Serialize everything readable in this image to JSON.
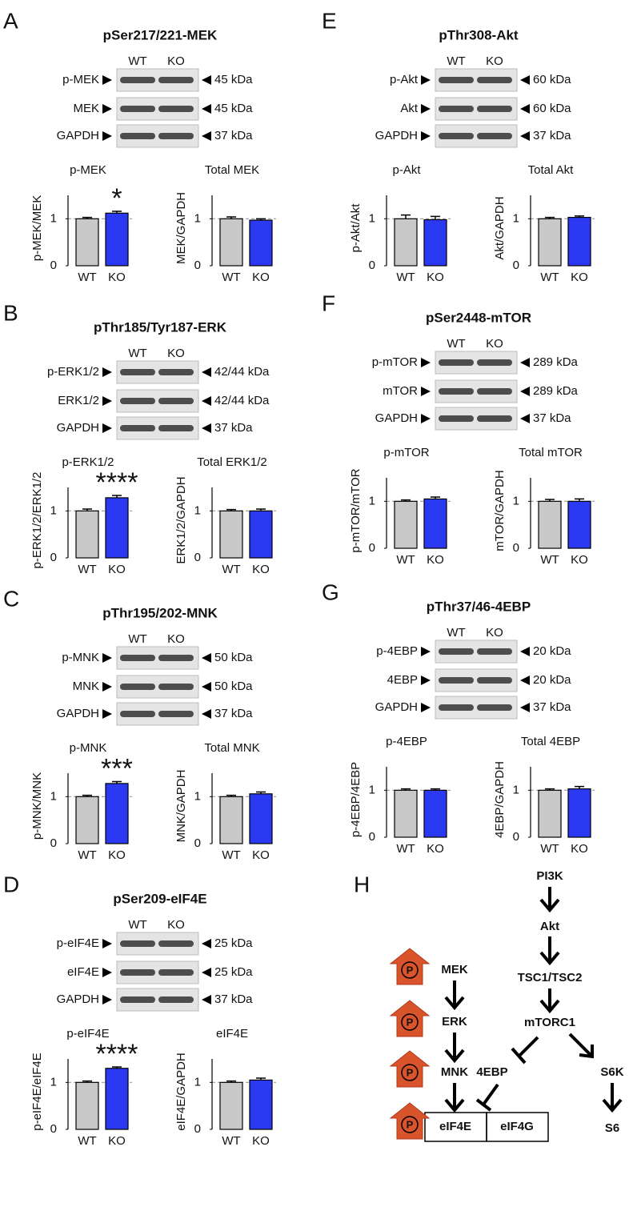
{
  "panels": [
    {
      "label": "A",
      "title": "pSer217/221-MEK",
      "lanes": [
        "WT",
        "KO"
      ],
      "blots": [
        {
          "name": "p-MEK",
          "size": "45 kDa"
        },
        {
          "name": "MEK",
          "size": "45 kDa"
        },
        {
          "name": "GAPDH",
          "size": "37 kDa"
        }
      ]
    },
    {
      "label": "B",
      "title": "pThr185/Tyr187-ERK",
      "lanes": [
        "WT",
        "KO"
      ],
      "blots": [
        {
          "name": "p-ERK1/2",
          "size": "42/44 kDa"
        },
        {
          "name": "ERK1/2",
          "size": "42/44 kDa"
        },
        {
          "name": "GAPDH",
          "size": "37 kDa"
        }
      ]
    },
    {
      "label": "C",
      "title": "pThr195/202-MNK",
      "lanes": [
        "WT",
        "KO"
      ],
      "blots": [
        {
          "name": "p-MNK",
          "size": "50 kDa"
        },
        {
          "name": "MNK",
          "size": "50 kDa"
        },
        {
          "name": "GAPDH",
          "size": "37 kDa"
        }
      ]
    },
    {
      "label": "D",
      "title": "pSer209-eIF4E",
      "lanes": [
        "WT",
        "KO"
      ],
      "blots": [
        {
          "name": "p-eIF4E",
          "size": "25 kDa"
        },
        {
          "name": "eIF4E",
          "size": "25 kDa"
        },
        {
          "name": "GAPDH",
          "size": "37 kDa"
        }
      ]
    },
    {
      "label": "E",
      "title": "pThr308-Akt",
      "lanes": [
        "WT",
        "KO"
      ],
      "blots": [
        {
          "name": "p-Akt",
          "size": "60 kDa"
        },
        {
          "name": "Akt",
          "size": "60 kDa"
        },
        {
          "name": "GAPDH",
          "size": "37 kDa"
        }
      ]
    },
    {
      "label": "F",
      "title": "pSer2448-mTOR",
      "lanes": [
        "WT",
        "KO"
      ],
      "blots": [
        {
          "name": "p-mTOR",
          "size": "289 kDa"
        },
        {
          "name": "mTOR",
          "size": "289 kDa"
        },
        {
          "name": "GAPDH",
          "size": "37 kDa"
        }
      ]
    },
    {
      "label": "G",
      "title": "pThr37/46-4EBP",
      "lanes": [
        "WT",
        "KO"
      ],
      "blots": [
        {
          "name": "p-4EBP",
          "size": "20 kDa"
        },
        {
          "name": "4EBP",
          "size": "20 kDa"
        },
        {
          "name": "GAPDH",
          "size": "37 kDa"
        }
      ]
    }
  ],
  "chart_data": [
    {
      "type": "bar",
      "title": "p-MEK",
      "ylabel": "p-MEK/MEK",
      "categories": [
        "WT",
        "KO"
      ],
      "values": [
        1.0,
        1.12
      ],
      "errors": [
        0.03,
        0.04
      ],
      "colors": [
        "#c8c8c8",
        "#2b3af2"
      ],
      "ylim": [
        0,
        1.5
      ],
      "yticks": [
        0,
        1
      ],
      "reference_line": 1,
      "annotation": "*"
    },
    {
      "type": "bar",
      "title": "Total MEK",
      "ylabel": "MEK/GAPDH",
      "categories": [
        "WT",
        "KO"
      ],
      "values": [
        1.0,
        0.97
      ],
      "errors": [
        0.04,
        0.03
      ],
      "colors": [
        "#c8c8c8",
        "#2b3af2"
      ],
      "ylim": [
        0,
        1.5
      ],
      "yticks": [
        0,
        1
      ],
      "reference_line": 1
    },
    {
      "type": "bar",
      "title": "p-ERK1/2",
      "ylabel": "p-ERK1/2/ERK1/2",
      "categories": [
        "WT",
        "KO"
      ],
      "values": [
        1.0,
        1.28
      ],
      "errors": [
        0.04,
        0.05
      ],
      "colors": [
        "#c8c8c8",
        "#2b3af2"
      ],
      "ylim": [
        0,
        1.5
      ],
      "yticks": [
        0,
        1
      ],
      "reference_line": 1,
      "annotation": "****"
    },
    {
      "type": "bar",
      "title": "Total ERK1/2",
      "ylabel": "ERK1/2/GAPDH",
      "categories": [
        "WT",
        "KO"
      ],
      "values": [
        1.0,
        1.0
      ],
      "errors": [
        0.03,
        0.04
      ],
      "colors": [
        "#c8c8c8",
        "#2b3af2"
      ],
      "ylim": [
        0,
        1.5
      ],
      "yticks": [
        0,
        1
      ],
      "reference_line": 1
    },
    {
      "type": "bar",
      "title": "p-MNK",
      "ylabel": "p-MNK/MNK",
      "categories": [
        "WT",
        "KO"
      ],
      "values": [
        1.0,
        1.28
      ],
      "errors": [
        0.03,
        0.04
      ],
      "colors": [
        "#c8c8c8",
        "#2b3af2"
      ],
      "ylim": [
        0,
        1.5
      ],
      "yticks": [
        0,
        1
      ],
      "reference_line": 1,
      "annotation": "***"
    },
    {
      "type": "bar",
      "title": "Total MNK",
      "ylabel": "MNK/GAPDH",
      "categories": [
        "WT",
        "KO"
      ],
      "values": [
        1.0,
        1.06
      ],
      "errors": [
        0.03,
        0.04
      ],
      "colors": [
        "#c8c8c8",
        "#2b3af2"
      ],
      "ylim": [
        0,
        1.5
      ],
      "yticks": [
        0,
        1
      ],
      "reference_line": 1
    },
    {
      "type": "bar",
      "title": "p-eIF4E",
      "ylabel": "p-eIF4E/eIF4E",
      "categories": [
        "WT",
        "KO"
      ],
      "values": [
        1.0,
        1.3
      ],
      "errors": [
        0.03,
        0.03
      ],
      "colors": [
        "#c8c8c8",
        "#2b3af2"
      ],
      "ylim": [
        0,
        1.5
      ],
      "yticks": [
        0,
        1
      ],
      "reference_line": 1,
      "annotation": "****"
    },
    {
      "type": "bar",
      "title": "eIF4E",
      "ylabel": "eIF4E/GAPDH",
      "categories": [
        "WT",
        "KO"
      ],
      "values": [
        1.0,
        1.05
      ],
      "errors": [
        0.03,
        0.04
      ],
      "colors": [
        "#c8c8c8",
        "#2b3af2"
      ],
      "ylim": [
        0,
        1.5
      ],
      "yticks": [
        0,
        1
      ],
      "reference_line": 1
    },
    {
      "type": "bar",
      "title": "p-Akt",
      "ylabel": "p-Akt/Akt",
      "categories": [
        "WT",
        "KO"
      ],
      "values": [
        1.0,
        0.98
      ],
      "errors": [
        0.08,
        0.07
      ],
      "colors": [
        "#c8c8c8",
        "#2b3af2"
      ],
      "ylim": [
        0,
        1.5
      ],
      "yticks": [
        0,
        1
      ],
      "reference_line": 1
    },
    {
      "type": "bar",
      "title": "Total Akt",
      "ylabel": "Akt/GAPDH",
      "categories": [
        "WT",
        "KO"
      ],
      "values": [
        1.0,
        1.03
      ],
      "errors": [
        0.03,
        0.03
      ],
      "colors": [
        "#c8c8c8",
        "#2b3af2"
      ],
      "ylim": [
        0,
        1.5
      ],
      "yticks": [
        0,
        1
      ],
      "reference_line": 1
    },
    {
      "type": "bar",
      "title": "p-mTOR",
      "ylabel": "p-mTOR/mTOR",
      "categories": [
        "WT",
        "KO"
      ],
      "values": [
        1.0,
        1.05
      ],
      "errors": [
        0.03,
        0.04
      ],
      "colors": [
        "#c8c8c8",
        "#2b3af2"
      ],
      "ylim": [
        0,
        1.5
      ],
      "yticks": [
        0,
        1
      ],
      "reference_line": 1
    },
    {
      "type": "bar",
      "title": "Total mTOR",
      "ylabel": "mTOR/GAPDH",
      "categories": [
        "WT",
        "KO"
      ],
      "values": [
        1.0,
        1.0
      ],
      "errors": [
        0.04,
        0.05
      ],
      "colors": [
        "#c8c8c8",
        "#2b3af2"
      ],
      "ylim": [
        0,
        1.5
      ],
      "yticks": [
        0,
        1
      ],
      "reference_line": 1
    },
    {
      "type": "bar",
      "title": "p-4EBP",
      "ylabel": "p-4EBP/4EBP",
      "categories": [
        "WT",
        "KO"
      ],
      "values": [
        1.0,
        1.0
      ],
      "errors": [
        0.03,
        0.03
      ],
      "colors": [
        "#c8c8c8",
        "#2b3af2"
      ],
      "ylim": [
        0,
        1.5
      ],
      "yticks": [
        0,
        1
      ],
      "reference_line": 1
    },
    {
      "type": "bar",
      "title": "Total 4EBP",
      "ylabel": "4EBP/GAPDH",
      "categories": [
        "WT",
        "KO"
      ],
      "values": [
        1.0,
        1.03
      ],
      "errors": [
        0.03,
        0.05
      ],
      "colors": [
        "#c8c8c8",
        "#2b3af2"
      ],
      "ylim": [
        0,
        1.5
      ],
      "yticks": [
        0,
        1
      ],
      "reference_line": 1
    }
  ],
  "diagram": {
    "label": "H",
    "nodes": [
      "PI3K",
      "Akt",
      "TSC1/TSC2",
      "mTORC1",
      "MEK",
      "ERK",
      "MNK",
      "4EBP",
      "S6K",
      "S6",
      "eIF4E",
      "eIF4G"
    ],
    "phospho": "P"
  }
}
